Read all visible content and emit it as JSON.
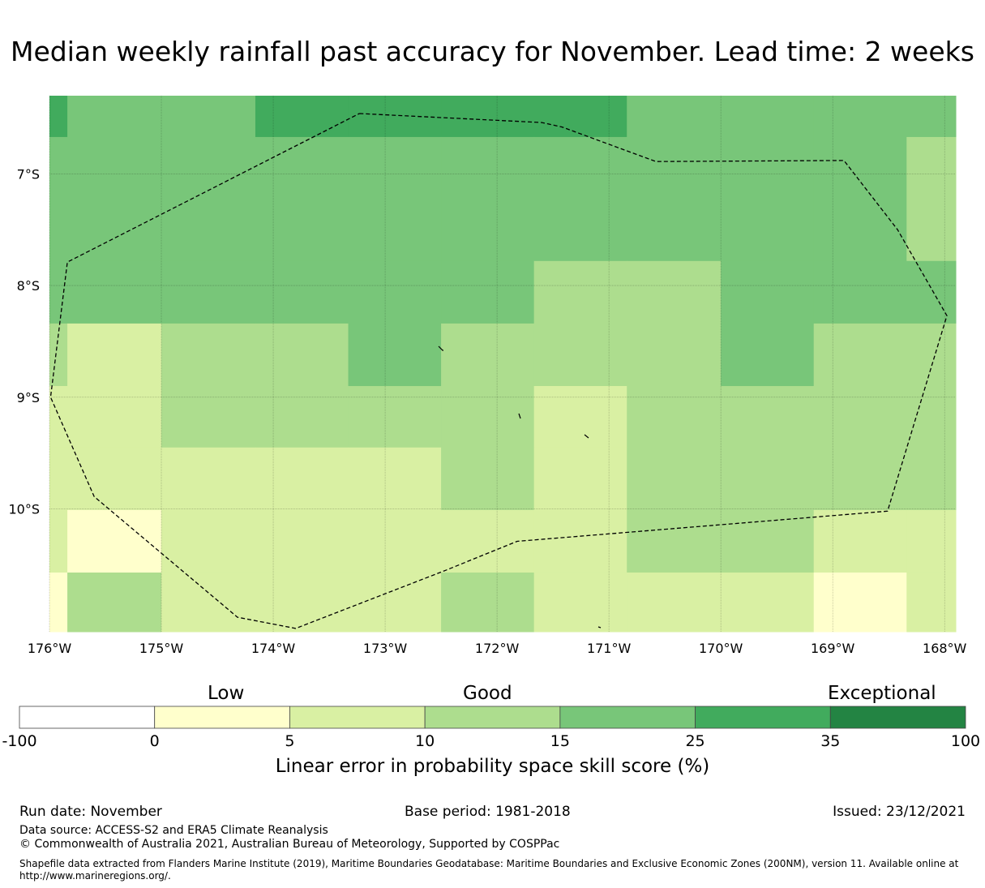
{
  "title": "Median weekly rainfall past accuracy for November. Lead time: 2 weeks",
  "map": {
    "lon_range": [
      -176,
      -167.9
    ],
    "lat_range": [
      -11.1,
      -6.3
    ],
    "lon_ticks": [
      {
        "value": -176,
        "label": "176°W"
      },
      {
        "value": -175,
        "label": "175°W"
      },
      {
        "value": -174,
        "label": "174°W"
      },
      {
        "value": -173,
        "label": "173°W"
      },
      {
        "value": -172,
        "label": "172°W"
      },
      {
        "value": -171,
        "label": "171°W"
      },
      {
        "value": -170,
        "label": "170°W"
      },
      {
        "value": -169,
        "label": "169°W"
      },
      {
        "value": -168,
        "label": "168°W"
      }
    ],
    "lat_ticks": [
      {
        "value": -7,
        "label": "7°S"
      },
      {
        "value": -8,
        "label": "8°S"
      },
      {
        "value": -9,
        "label": "9°S"
      },
      {
        "value": -10,
        "label": "10°S"
      }
    ],
    "grid_lon_edges": [
      -176,
      -175.84,
      -175,
      -174.16,
      -173.33,
      -172.5,
      -171.67,
      -170.84,
      -170,
      -169.17,
      -168.34,
      -167.9
    ],
    "grid_lat_edges": [
      -6.3,
      -6.67,
      -7.78,
      -8.34,
      -8.9,
      -9.45,
      -10.01,
      -10.57,
      -11.1
    ],
    "skill_class_grid": [
      [
        5,
        4,
        4,
        5,
        5,
        5,
        5,
        4,
        4,
        4,
        4
      ],
      [
        4,
        4,
        4,
        4,
        4,
        4,
        4,
        4,
        4,
        4,
        3
      ],
      [
        4,
        4,
        4,
        4,
        4,
        4,
        3,
        3,
        4,
        4,
        4
      ],
      [
        3,
        2,
        3,
        3,
        4,
        3,
        3,
        3,
        4,
        3,
        3
      ],
      [
        2,
        2,
        3,
        3,
        3,
        3,
        2,
        3,
        3,
        3,
        3
      ],
      [
        2,
        2,
        2,
        2,
        2,
        3,
        2,
        3,
        3,
        3,
        3
      ],
      [
        2,
        1,
        2,
        2,
        2,
        2,
        2,
        3,
        3,
        2,
        2
      ],
      [
        1,
        3,
        2,
        2,
        2,
        3,
        2,
        2,
        2,
        1,
        2
      ]
    ],
    "eez_boundary": [
      [
        -173.23,
        -6.46
      ],
      [
        -171.6,
        -6.54
      ],
      [
        -171.42,
        -6.58
      ],
      [
        -170.58,
        -6.89
      ],
      [
        -168.9,
        -6.88
      ],
      [
        -168.42,
        -7.5
      ],
      [
        -167.98,
        -8.27
      ],
      [
        -168.51,
        -10.02
      ],
      [
        -171.82,
        -10.29
      ],
      [
        -172.46,
        -10.55
      ],
      [
        -173.8,
        -11.07
      ],
      [
        -174.32,
        -10.97
      ],
      [
        -175.6,
        -9.89
      ],
      [
        -175.99,
        -9.0
      ],
      [
        -175.84,
        -7.79
      ],
      [
        -173.23,
        -6.46
      ]
    ]
  },
  "colorbar": {
    "category_labels": [
      "Low",
      "Good",
      "Exceptional"
    ],
    "bins": [
      {
        "label": "-100",
        "color": "#ffffff"
      },
      {
        "label": "0",
        "color": "#ffffcc"
      },
      {
        "label": "5",
        "color": "#d9f0a3"
      },
      {
        "label": "10",
        "color": "#addd8e"
      },
      {
        "label": "15",
        "color": "#78c679"
      },
      {
        "label": "25",
        "color": "#41ab5d"
      },
      {
        "label": "35",
        "color": "#238443"
      }
    ],
    "end_label": "100",
    "axis_label": "Linear error in probability space skill score (%)"
  },
  "footer": {
    "run_date": "Run date: November",
    "base_period": "Base period: 1981-2018",
    "issued": "Issued: 23/12/2021",
    "data_source": "Data source: ACCESS-S2 and ERA5 Climate Reanalysis",
    "copyright": "© Commonwealth of Australia 2021, Australian Bureau of Meteorology, Supported by COSPPac",
    "shapefile_note": "Shapefile data extracted from Flanders Marine Institute (2019), Maritime Boundaries Geodatabase: Maritime Boundaries and Exclusive Economic Zones (200NM), version 11. Available online at http://www.marineregions.org/."
  }
}
